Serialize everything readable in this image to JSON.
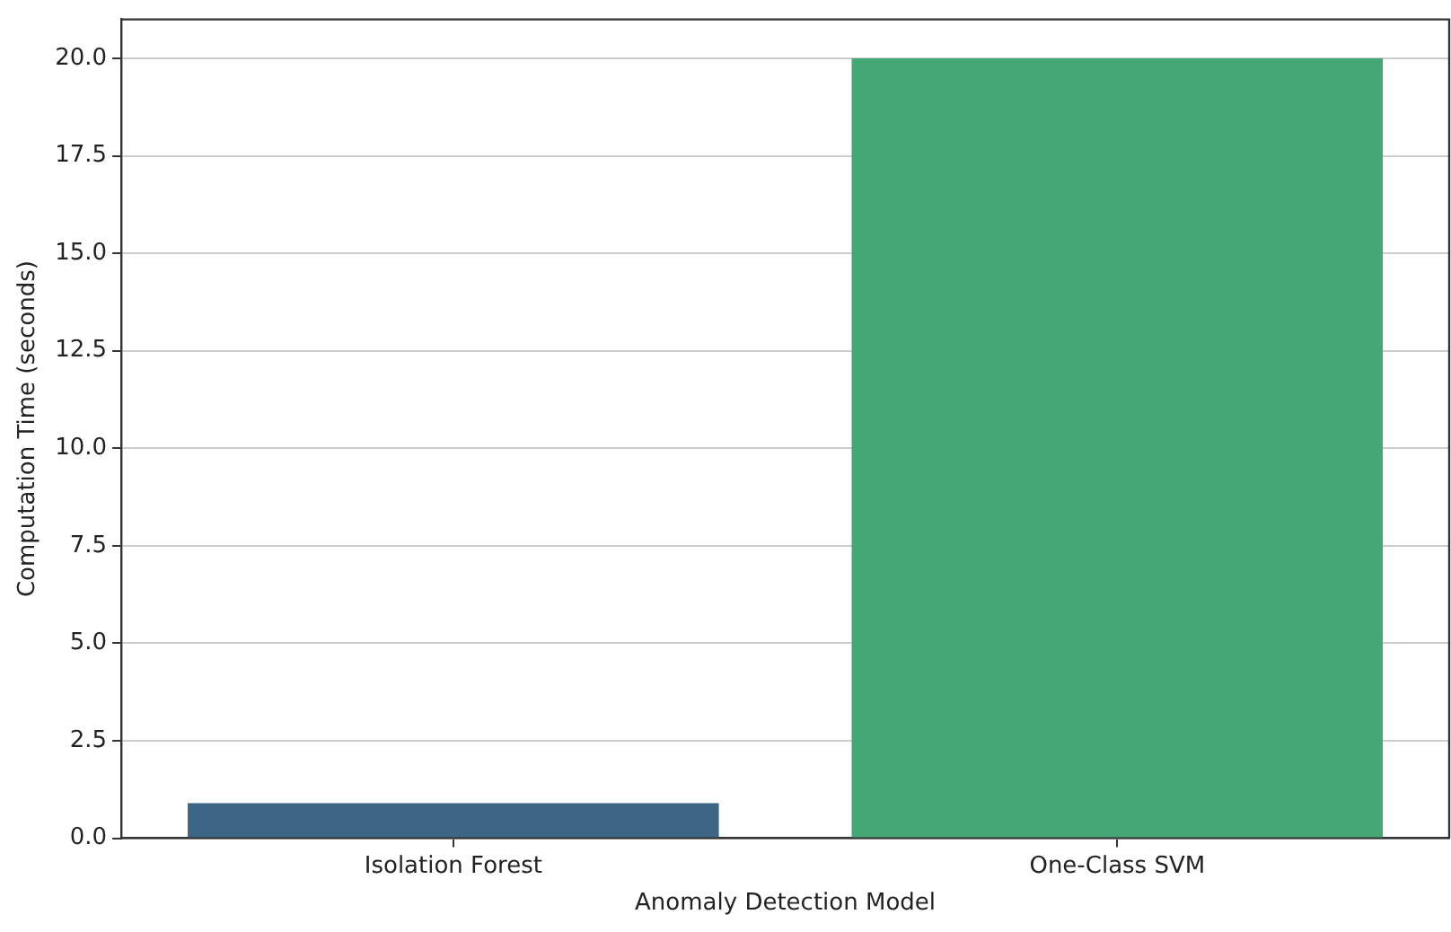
{
  "chart_data": {
    "type": "bar",
    "xlabel": "Anomaly Detection Model",
    "ylabel": "Computation Time (seconds)",
    "categories": [
      "Isolation Forest",
      "One-Class SVM"
    ],
    "values": [
      0.9,
      20.0
    ],
    "colors": [
      "#3d6585",
      "#45a676"
    ],
    "ylim": [
      0,
      21.0
    ],
    "yticks": [
      {
        "value": 0,
        "label": "0.0"
      },
      {
        "value": 2.5,
        "label": "2.5"
      },
      {
        "value": 5,
        "label": "5.0"
      },
      {
        "value": 7.5,
        "label": "7.5"
      },
      {
        "value": 10,
        "label": "10.0"
      },
      {
        "value": 12.5,
        "label": "12.5"
      },
      {
        "value": 15,
        "label": "15.0"
      },
      {
        "value": 17.5,
        "label": "17.5"
      },
      {
        "value": 20,
        "label": "20.0"
      }
    ],
    "grid": "y",
    "legend": false
  }
}
